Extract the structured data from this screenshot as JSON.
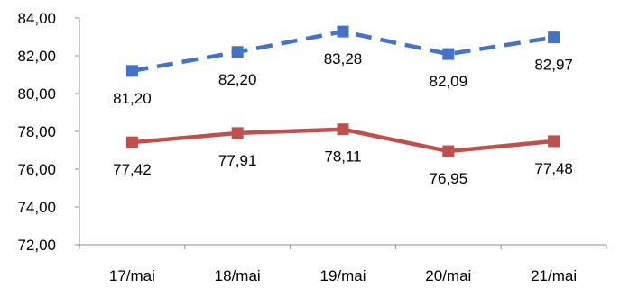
{
  "chart_data": {
    "type": "line",
    "title": "",
    "categories": [
      "17/mai",
      "18/mai",
      "19/mai",
      "20/mai",
      "21/mai"
    ],
    "ylim": [
      72,
      84
    ],
    "yticks": [
      "72,00",
      "74,00",
      "76,00",
      "78,00",
      "80,00",
      "82,00",
      "84,00"
    ],
    "grid": false,
    "legend": "none",
    "series": [
      {
        "values": [
          81.2,
          82.2,
          83.28,
          82.09,
          82.97
        ],
        "labels": [
          "81,20",
          "82,20",
          "83,28",
          "82,09",
          "82,97"
        ],
        "color": "#4472C4",
        "style": "dashed",
        "marker": "square"
      },
      {
        "values": [
          77.42,
          77.91,
          78.11,
          76.95,
          77.48
        ],
        "labels": [
          "77,42",
          "77,91",
          "78,11",
          "76,95",
          "77,48"
        ],
        "color": "#C0504D",
        "style": "solid",
        "marker": "square"
      }
    ]
  }
}
